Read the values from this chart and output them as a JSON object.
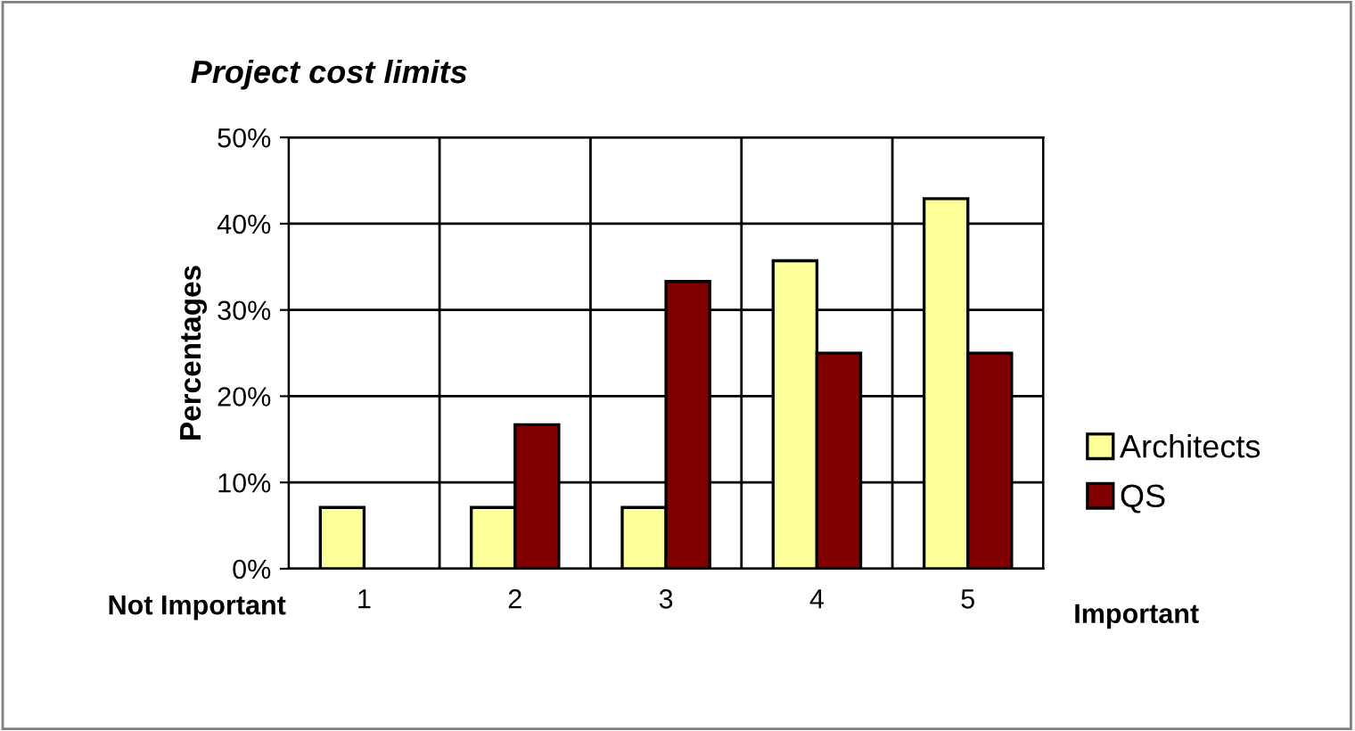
{
  "chart_data": {
    "type": "bar",
    "title": "Project cost limits",
    "ylabel": "Percentages",
    "categories": [
      "1",
      "2",
      "3",
      "4",
      "5"
    ],
    "series": [
      {
        "name": "Architects",
        "color": "#ffff99",
        "values": [
          7.1,
          7.1,
          7.1,
          35.7,
          42.9
        ]
      },
      {
        "name": "QS",
        "color": "#800000",
        "values": [
          null,
          16.7,
          33.3,
          25,
          25
        ]
      }
    ],
    "ylim": [
      0,
      50
    ],
    "yticks": [
      {
        "value": 0,
        "label": "0%"
      },
      {
        "value": 10,
        "label": "10%"
      },
      {
        "value": 20,
        "label": "20%"
      },
      {
        "value": 30,
        "label": "30%"
      },
      {
        "value": 40,
        "label": "40%"
      },
      {
        "value": 50,
        "label": "50%"
      }
    ],
    "grid": true,
    "legend": "right",
    "annotations": [
      "Not Important",
      "Important"
    ]
  }
}
